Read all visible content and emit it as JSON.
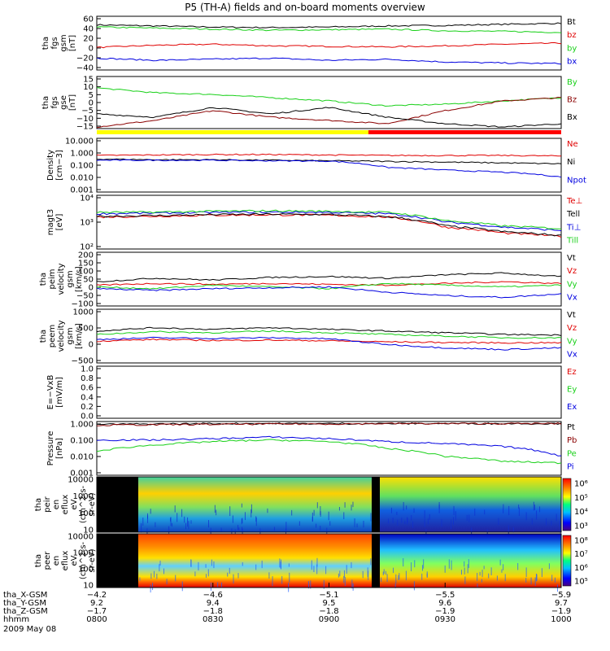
{
  "title": "P5 (TH-A) fields and on-board moments overview",
  "colors": {
    "black": "#000000",
    "red": "#e00000",
    "green": "#18d018",
    "blue": "#0000e0",
    "darkred": "#8b0000",
    "yellow": "#ffff00",
    "barred": "#ff0000"
  },
  "chart_data": [
    {
      "type": "line",
      "ylabel": [
        "tha",
        "fgs",
        "gsm",
        "[nT]"
      ],
      "yticks": [
        "60",
        "40",
        "20",
        "0",
        "−20",
        "−40"
      ],
      "ylim": [
        -40,
        60
      ],
      "series": [
        {
          "name": "Bt",
          "color": "#000000",
          "x": [
            800,
            815,
            830,
            845,
            900,
            915,
            930,
            945,
            1000
          ],
          "y": [
            44,
            42,
            40,
            39,
            40,
            42,
            43,
            45,
            47
          ]
        },
        {
          "name": "bz",
          "color": "#e00000",
          "x": [
            800,
            815,
            830,
            845,
            900,
            915,
            930,
            945,
            1000
          ],
          "y": [
            2,
            6,
            8,
            5,
            4,
            3,
            5,
            8,
            10
          ]
        },
        {
          "name": "by",
          "color": "#18d018",
          "x": [
            800,
            815,
            830,
            845,
            900,
            915,
            930,
            945,
            1000
          ],
          "y": [
            40,
            38,
            36,
            34,
            35,
            36,
            33,
            32,
            30
          ]
        },
        {
          "name": "bx",
          "color": "#0000e0",
          "x": [
            800,
            815,
            830,
            845,
            900,
            915,
            930,
            945,
            1000
          ],
          "y": [
            -18,
            -22,
            -20,
            -18,
            -22,
            -20,
            -25,
            -27,
            -28
          ]
        }
      ]
    },
    {
      "type": "line",
      "ylabel": [
        "tha",
        "fgs",
        "gse",
        "[nT]"
      ],
      "yticks": [
        "15",
        "10",
        "5",
        "0",
        "−5",
        "−10",
        "−15"
      ],
      "ylim": [
        -17,
        15
      ],
      "series": [
        {
          "name": "By",
          "color": "#18d018",
          "x": [
            800,
            815,
            830,
            845,
            900,
            915,
            930,
            945,
            1000
          ],
          "y": [
            8,
            5,
            4,
            2,
            0,
            -3,
            -2,
            0,
            2
          ]
        },
        {
          "name": "Bz",
          "color": "#8b0000",
          "x": [
            800,
            815,
            830,
            845,
            900,
            915,
            930,
            945,
            1000
          ],
          "y": [
            -16,
            -12,
            -6,
            -10,
            -12,
            -14,
            -6,
            0,
            2
          ]
        },
        {
          "name": "Bx",
          "color": "#000000",
          "x": [
            800,
            815,
            830,
            845,
            900,
            915,
            930,
            945,
            1000
          ],
          "y": [
            -8,
            -10,
            -4,
            -8,
            -4,
            -10,
            -14,
            -16,
            -14
          ]
        }
      ]
    },
    {
      "type": "line",
      "ylabel": [
        "Density",
        "[cm−3]"
      ],
      "yscale": "log",
      "yticks": [
        "10.000",
        "1.000",
        "0.100",
        "0.010",
        "0.001"
      ],
      "ylim": [
        0.0005,
        15
      ],
      "series": [
        {
          "name": "Ne",
          "color": "#e00000",
          "x": [
            800,
            815,
            830,
            845,
            900,
            915,
            930,
            945,
            1000
          ],
          "y": [
            0.5,
            0.55,
            0.6,
            0.6,
            0.55,
            0.5,
            0.5,
            0.5,
            0.45
          ]
        },
        {
          "name": "Ni",
          "color": "#000000",
          "x": [
            800,
            815,
            830,
            845,
            900,
            915,
            930,
            945,
            1000
          ],
          "y": [
            0.25,
            0.22,
            0.22,
            0.2,
            0.18,
            0.16,
            0.14,
            0.12,
            0.1
          ]
        },
        {
          "name": "Npot",
          "color": "#0000e0",
          "x": [
            800,
            815,
            830,
            845,
            900,
            915,
            930,
            945,
            1000
          ],
          "y": [
            0.2,
            0.2,
            0.2,
            0.18,
            0.17,
            0.05,
            0.03,
            0.02,
            0.008
          ]
        }
      ]
    },
    {
      "type": "line",
      "ylabel": [
        "magt3",
        "[eV]"
      ],
      "yscale": "log",
      "yticks": [
        "10⁴",
        "10³",
        "10²"
      ],
      "ylim": [
        50,
        30000
      ],
      "series": [
        {
          "name": "Te⊥",
          "color": "#e00000",
          "x": [
            800,
            815,
            830,
            845,
            900,
            915,
            930,
            945,
            1000
          ],
          "y": [
            2000,
            2200,
            2500,
            2600,
            2500,
            2000,
            600,
            300,
            200
          ]
        },
        {
          "name": "Tell",
          "color": "#000000",
          "x": [
            800,
            815,
            830,
            845,
            900,
            915,
            930,
            945,
            1000
          ],
          "y": [
            2200,
            2400,
            2700,
            2800,
            2700,
            2100,
            700,
            350,
            220
          ]
        },
        {
          "name": "Ti⊥",
          "color": "#0000e0",
          "x": [
            800,
            815,
            830,
            845,
            900,
            915,
            930,
            945,
            1000
          ],
          "y": [
            3000,
            3200,
            3500,
            3600,
            3500,
            3000,
            1100,
            600,
            400
          ]
        },
        {
          "name": "Till",
          "color": "#18d018",
          "x": [
            800,
            815,
            830,
            845,
            900,
            915,
            930,
            945,
            1000
          ],
          "y": [
            3500,
            3600,
            4000,
            4200,
            4000,
            3500,
            1300,
            700,
            500
          ]
        }
      ]
    },
    {
      "type": "line",
      "ylabel": [
        "tha",
        "peim",
        "velocity",
        "gsm",
        "[km/s]"
      ],
      "yticks": [
        "200",
        "150",
        "100",
        "50",
        "0",
        "−50",
        "−100"
      ],
      "ylim": [
        -110,
        200
      ],
      "series": [
        {
          "name": "Vt",
          "color": "#000000",
          "x": [
            800,
            815,
            830,
            845,
            900,
            915,
            930,
            945,
            1000
          ],
          "y": [
            30,
            50,
            40,
            55,
            60,
            50,
            70,
            80,
            60
          ]
        },
        {
          "name": "Vz",
          "color": "#e00000",
          "x": [
            800,
            815,
            830,
            845,
            900,
            915,
            930,
            945,
            1000
          ],
          "y": [
            10,
            20,
            15,
            20,
            15,
            10,
            20,
            30,
            20
          ]
        },
        {
          "name": "Vy",
          "color": "#18d018",
          "x": [
            800,
            815,
            830,
            845,
            900,
            915,
            930,
            945,
            1000
          ],
          "y": [
            0,
            -10,
            10,
            0,
            -10,
            20,
            10,
            0,
            10
          ]
        },
        {
          "name": "Vx",
          "color": "#0000e0",
          "x": [
            800,
            815,
            830,
            845,
            900,
            915,
            930,
            945,
            1000
          ],
          "y": [
            -10,
            -20,
            -10,
            -5,
            0,
            -30,
            -50,
            -60,
            -40
          ]
        }
      ]
    },
    {
      "type": "line",
      "ylabel": [
        "tha",
        "peem",
        "velocity",
        "gsm",
        "[km/s]"
      ],
      "yticks": [
        "1000",
        "500",
        "0",
        "−500"
      ],
      "ylim": [
        -550,
        1050
      ],
      "series": [
        {
          "name": "Vt",
          "color": "#000000",
          "x": [
            800,
            815,
            830,
            845,
            900,
            915,
            930,
            945,
            1000
          ],
          "y": [
            400,
            500,
            450,
            500,
            450,
            400,
            350,
            300,
            280
          ]
        },
        {
          "name": "Vz",
          "color": "#e00000",
          "x": [
            800,
            815,
            830,
            845,
            900,
            915,
            930,
            945,
            1000
          ],
          "y": [
            100,
            150,
            120,
            130,
            110,
            80,
            60,
            50,
            50
          ]
        },
        {
          "name": "Vy",
          "color": "#18d018",
          "x": [
            800,
            815,
            830,
            845,
            900,
            915,
            930,
            945,
            1000
          ],
          "y": [
            300,
            380,
            350,
            400,
            350,
            300,
            250,
            200,
            200
          ]
        },
        {
          "name": "Vx",
          "color": "#0000e0",
          "x": [
            800,
            815,
            830,
            845,
            900,
            915,
            930,
            945,
            1000
          ],
          "y": [
            150,
            200,
            180,
            200,
            170,
            0,
            -100,
            -150,
            -100
          ]
        }
      ]
    },
    {
      "type": "line",
      "ylabel": [
        "E=−VxB",
        "[mV/m]"
      ],
      "yticks": [
        "1.0",
        "0.8",
        "0.6",
        "0.4",
        "0.2",
        "0.0"
      ],
      "ylim": [
        0,
        1
      ],
      "series": [
        {
          "name": "Ez",
          "color": "#e00000",
          "x": [],
          "y": []
        },
        {
          "name": "Ey",
          "color": "#18d018",
          "x": [],
          "y": []
        },
        {
          "name": "Ex",
          "color": "#0000e0",
          "x": [],
          "y": []
        }
      ]
    },
    {
      "type": "line",
      "ylabel": [
        "Pressure",
        "[nPa]"
      ],
      "yscale": "log",
      "yticks": [
        "1.000",
        "0.100",
        "0.010",
        "0.001"
      ],
      "ylim": [
        0.0008,
        1.5
      ],
      "series": [
        {
          "name": "Pt",
          "color": "#000000",
          "x": [
            800,
            815,
            830,
            845,
            900,
            915,
            930,
            945,
            1000
          ],
          "y": [
            0.9,
            0.95,
            1.0,
            1.0,
            1.0,
            1.0,
            1.0,
            1.0,
            1.0
          ]
        },
        {
          "name": "Pb",
          "color": "#8b0000",
          "x": [
            800,
            815,
            830,
            845,
            900,
            915,
            930,
            945,
            1000
          ],
          "y": [
            0.8,
            0.85,
            0.9,
            0.95,
            0.95,
            1.0,
            1.0,
            1.0,
            1.0
          ]
        },
        {
          "name": "Pe",
          "color": "#18d018",
          "x": [
            800,
            815,
            830,
            845,
            900,
            915,
            930,
            945,
            1000
          ],
          "y": [
            0.02,
            0.05,
            0.08,
            0.1,
            0.08,
            0.03,
            0.01,
            0.005,
            0.004
          ]
        },
        {
          "name": "Pi",
          "color": "#0000e0",
          "x": [
            800,
            815,
            830,
            845,
            900,
            915,
            930,
            945,
            1000
          ],
          "y": [
            0.1,
            0.1,
            0.12,
            0.15,
            0.12,
            0.08,
            0.06,
            0.04,
            0.01
          ]
        }
      ]
    },
    {
      "type": "heatmap",
      "ylabel": [
        "tha",
        "peir",
        "en",
        "eflux",
        "eV",
        "(cm^2-s-",
        "sr-eV)"
      ],
      "yticks": [
        "10000",
        "1000",
        "100",
        "10"
      ],
      "colorbar_ticks": [
        "10⁶",
        "10⁵",
        "10⁴",
        "10³"
      ]
    },
    {
      "type": "heatmap",
      "ylabel": [
        "tha",
        "peer",
        "en",
        "eflux",
        "eV",
        "(cm^2-s-",
        "sr-eV)"
      ],
      "yticks": [
        "10000",
        "1000",
        "100",
        "10"
      ],
      "colorbar_ticks": [
        "10⁸",
        "10⁷",
        "10⁶",
        "10⁵"
      ]
    }
  ],
  "ephemeris": {
    "rows": [
      {
        "label": "tha_X-GSM",
        "values": [
          "−4.2",
          "−4.6",
          "−5.1",
          "−5.5",
          "−5.9"
        ]
      },
      {
        "label": "tha_Y-GSM",
        "values": [
          "9.2",
          "9.4",
          "9.5",
          "9.6",
          "9.7"
        ]
      },
      {
        "label": "tha_Z-GSM",
        "values": [
          "−1.7",
          "−1.8",
          "−1.8",
          "−1.9",
          "−1.9"
        ]
      },
      {
        "label": "hhmm",
        "values": [
          "0800",
          "0830",
          "0900",
          "0930",
          "1000"
        ]
      }
    ],
    "date": "2009 May 08"
  }
}
